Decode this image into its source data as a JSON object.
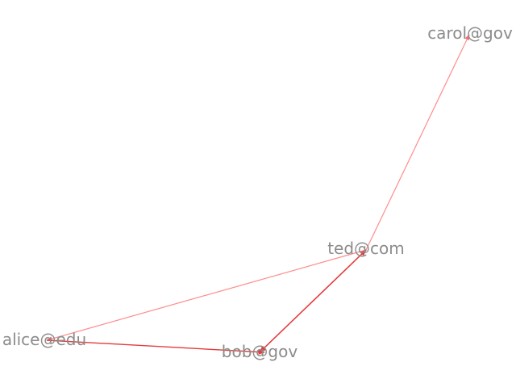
{
  "graph": {
    "nodes": [
      {
        "id": "carol",
        "label": "carol@gov"
      },
      {
        "id": "ted",
        "label": "ted@com"
      },
      {
        "id": "alice",
        "label": "alice@edu"
      },
      {
        "id": "bob",
        "label": "bob@gov"
      }
    ],
    "edges": [
      {
        "source": "ted",
        "target": "carol",
        "color": "#ff8c8c"
      },
      {
        "source": "ted",
        "target": "alice",
        "color": "#ff8c8c"
      },
      {
        "source": "alice",
        "target": "bob",
        "color": "#e53b3b"
      },
      {
        "source": "bob",
        "target": "ted",
        "color": "#e53b3b"
      },
      {
        "source": "ted",
        "target": "bob",
        "color": "#e53b3b"
      }
    ],
    "label_color": "#8c8c8c"
  }
}
